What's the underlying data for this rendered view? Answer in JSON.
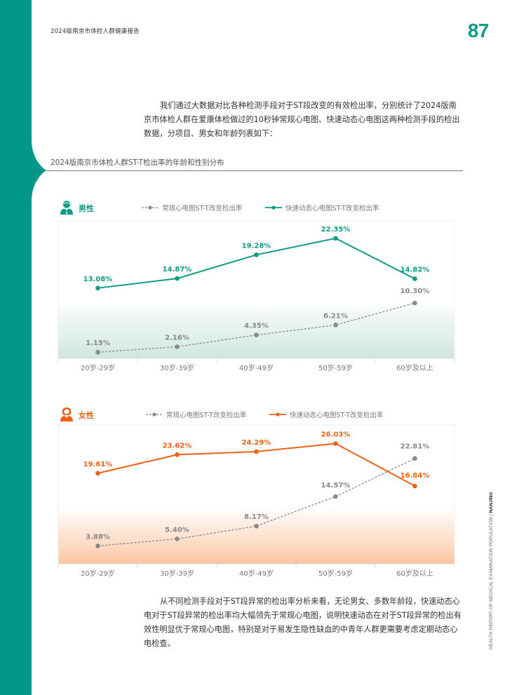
{
  "header": {
    "report_title": "2024版南京市体检人群健康报告",
    "page_number": "87"
  },
  "intro_text": "我们通过大数据对比各种检测手段对于ST段改变的有效检出率，分别统计了2024版南京市体检人群在爱康体检做过的10秒钟常规心电图、快速动态心电图这两种检测手段的检出数据，分项目、男女和年龄列表如下：",
  "section_title": "2024版南京市体检人群ST-T检出率的年龄和性别分布",
  "conclusion_text": "从不同检测手段对于ST段异常的检出率分析来看，无论男女、多数年龄段，快速动态心电对于ST段异常的检出率均大幅领先于常规心电图，说明快速动态在对于ST段异常的检出有效性明显优于常规心电图，特别是对于易发生隐性缺血的中青年人群更需要考虑定期动态心电检查。",
  "side_text": {
    "main": "HEALTH REPORT OF MEDICAL EXAMINATION POPULATION",
    "separator": "|",
    "city": "NANJING"
  },
  "colors": {
    "brand": "#009688",
    "male_accent": "#0f9a86",
    "female_accent": "#ee6116",
    "conventional": "#888888"
  },
  "chart_data": [
    {
      "type": "line",
      "title": "男性",
      "icon": "male-user-icon",
      "categories": [
        "20岁-29岁",
        "30岁-39岁",
        "40岁-49岁",
        "50岁-59岁",
        "60岁及以上"
      ],
      "series": [
        {
          "name": "常规心电图ST-T改变检出率",
          "style": "dashed",
          "values": [
            1.15,
            2.16,
            4.35,
            6.21,
            10.3
          ],
          "labels": [
            "1.15%",
            "2.16%",
            "4.35%",
            "6.21%",
            "10.30%"
          ]
        },
        {
          "name": "快速动态心电图ST-T改变检出率",
          "style": "solid",
          "values": [
            13.08,
            14.87,
            19.28,
            22.35,
            14.82
          ],
          "labels": [
            "13.08%",
            "14.87%",
            "19.28%",
            "22.35%",
            "14.82%"
          ]
        }
      ],
      "ylim": [
        0,
        25
      ],
      "grid": false,
      "legend_position": "top"
    },
    {
      "type": "line",
      "title": "女性",
      "icon": "female-user-icon",
      "categories": [
        "20岁-29岁",
        "30岁-39岁",
        "40岁-49岁",
        "50岁-59岁",
        "60岁及以上"
      ],
      "series": [
        {
          "name": "常规心电图ST-T改变检出率",
          "style": "dashed",
          "values": [
            3.88,
            5.4,
            8.17,
            14.57,
            22.81
          ],
          "labels": [
            "3.88%",
            "5.40%",
            "8.17%",
            "14.57%",
            "22.81%"
          ]
        },
        {
          "name": "快速动态心电图ST-T改变检出率",
          "style": "solid",
          "values": [
            19.61,
            23.62,
            24.29,
            26.03,
            16.84
          ],
          "labels": [
            "19.61%",
            "23.62%",
            "24.29%",
            "26.03%",
            "16.84%"
          ]
        }
      ],
      "ylim": [
        0,
        28
      ],
      "grid": false,
      "legend_position": "top"
    }
  ]
}
